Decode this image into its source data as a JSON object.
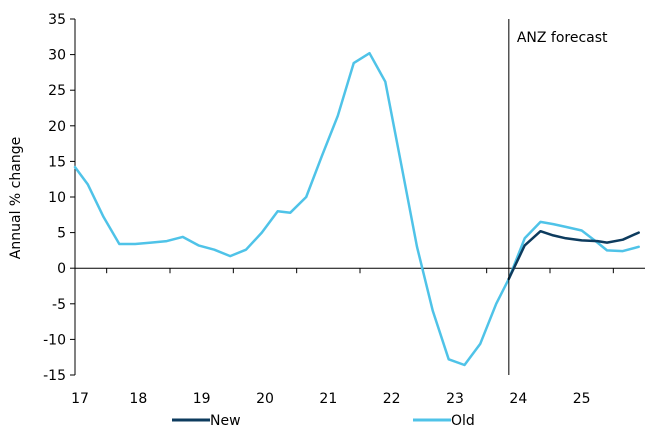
{
  "chart_data": {
    "type": "line",
    "ylabel": "Annual % change",
    "ylim": [
      -15,
      35
    ],
    "yticks": [
      35,
      30,
      25,
      20,
      15,
      10,
      5,
      0,
      -5,
      -10,
      -15
    ],
    "xlim": [
      17,
      26
    ],
    "xticks": [
      17,
      18,
      19,
      20,
      21,
      22,
      23,
      24,
      25
    ],
    "grid": false,
    "legend_position": "bottom",
    "annotation": {
      "text": "ANZ forecast",
      "x": 23.85
    },
    "series": [
      {
        "name": "New",
        "color": "#0d3b5e",
        "points": [
          [
            23.85,
            -1.5
          ],
          [
            24.1,
            3.2
          ],
          [
            24.35,
            5.2
          ],
          [
            24.55,
            4.6
          ],
          [
            24.75,
            4.2
          ],
          [
            25.0,
            3.9
          ],
          [
            25.25,
            3.8
          ],
          [
            25.4,
            3.6
          ],
          [
            25.65,
            4.0
          ],
          [
            25.9,
            5.0
          ]
        ]
      },
      {
        "name": "Old",
        "color": "#4fc3e8",
        "points": [
          [
            17.0,
            14.2
          ],
          [
            17.2,
            11.8
          ],
          [
            17.45,
            7.2
          ],
          [
            17.7,
            3.4
          ],
          [
            17.95,
            3.4
          ],
          [
            18.2,
            3.6
          ],
          [
            18.45,
            3.8
          ],
          [
            18.7,
            4.4
          ],
          [
            18.95,
            3.2
          ],
          [
            19.2,
            2.6
          ],
          [
            19.45,
            1.7
          ],
          [
            19.7,
            2.6
          ],
          [
            19.95,
            5.0
          ],
          [
            20.2,
            8.0
          ],
          [
            20.4,
            7.8
          ],
          [
            20.65,
            10.0
          ],
          [
            20.9,
            15.8
          ],
          [
            21.15,
            21.4
          ],
          [
            21.4,
            28.8
          ],
          [
            21.65,
            30.2
          ],
          [
            21.9,
            26.2
          ],
          [
            22.15,
            14.6
          ],
          [
            22.4,
            3.0
          ],
          [
            22.65,
            -6.0
          ],
          [
            22.9,
            -12.8
          ],
          [
            23.15,
            -13.6
          ],
          [
            23.4,
            -10.6
          ],
          [
            23.65,
            -5.0
          ],
          [
            23.85,
            -1.5
          ],
          [
            24.1,
            4.2
          ],
          [
            24.35,
            6.5
          ],
          [
            24.55,
            6.2
          ],
          [
            24.75,
            5.8
          ],
          [
            25.0,
            5.3
          ],
          [
            25.25,
            3.6
          ],
          [
            25.4,
            2.5
          ],
          [
            25.65,
            2.4
          ],
          [
            25.9,
            3.0
          ]
        ]
      }
    ]
  }
}
